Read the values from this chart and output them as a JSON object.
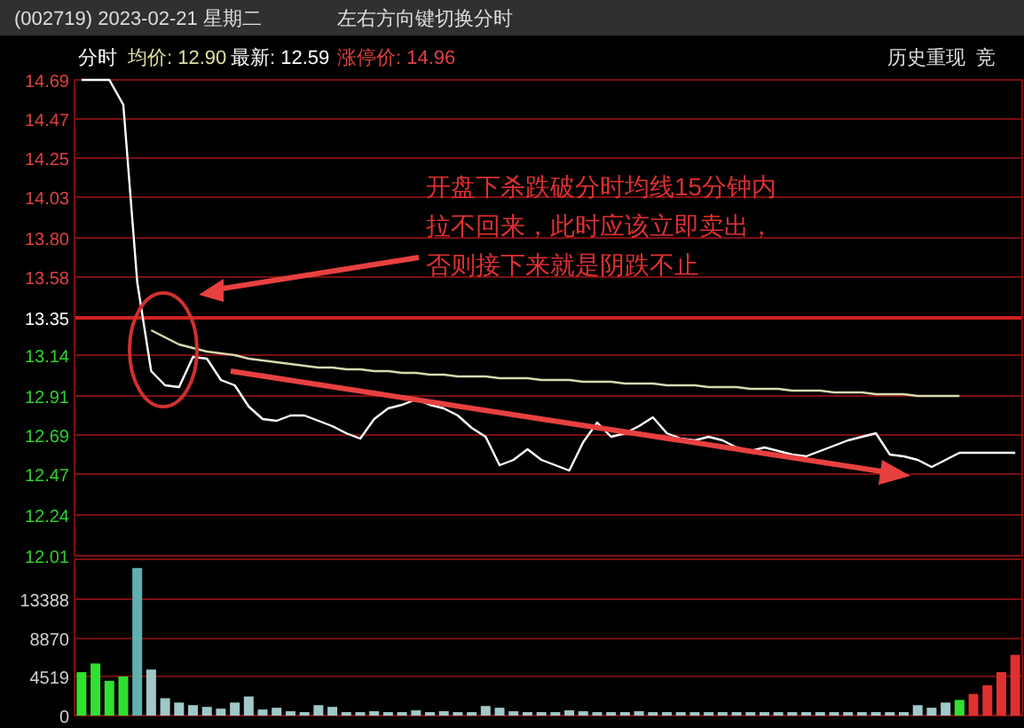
{
  "chart_data": [
    {
      "type": "line",
      "title": "(002719) 2023-02-21 星期二",
      "categories": [
        null,
        null,
        null,
        null,
        null,
        null,
        null,
        null,
        null,
        null,
        null,
        null,
        null,
        null,
        null,
        null,
        null,
        null,
        null,
        null,
        null,
        null,
        null,
        null,
        null,
        null,
        null,
        null,
        null,
        null,
        null,
        null,
        null,
        null,
        null,
        null,
        null,
        null,
        null,
        null,
        null,
        null,
        null,
        null,
        null,
        null,
        null,
        null,
        null,
        null,
        null,
        null,
        null,
        null,
        null,
        null,
        null,
        null,
        null,
        null,
        null,
        null,
        null,
        null,
        null,
        null,
        null,
        null
      ],
      "series": [
        {
          "color": "#ffffff",
          "values": [
            14.69,
            14.69,
            14.69,
            14.55,
            13.55,
            13.05,
            12.97,
            12.96,
            13.13,
            13.12,
            13.0,
            12.97,
            12.85,
            12.78,
            12.77,
            12.8,
            12.8,
            12.77,
            12.74,
            12.7,
            12.67,
            12.78,
            12.84,
            12.86,
            12.89,
            12.86,
            12.84,
            12.8,
            12.73,
            12.68,
            12.52,
            12.55,
            12.61,
            12.55,
            12.52,
            12.49,
            12.65,
            12.76,
            12.68,
            12.7,
            12.74,
            12.79,
            12.7,
            12.67,
            12.66,
            12.68,
            12.66,
            12.62,
            12.6,
            12.62,
            12.6,
            12.58,
            12.57,
            12.6,
            12.63,
            12.66,
            12.68,
            12.7,
            12.58,
            12.57,
            12.55,
            12.51,
            12.55,
            12.59,
            12.59,
            12.59,
            12.59,
            12.59
          ]
        },
        {
          "color": "#d8d8b0",
          "values": [
            null,
            null,
            null,
            null,
            null,
            13.28,
            13.24,
            13.2,
            13.18,
            13.16,
            13.15,
            13.14,
            13.12,
            13.11,
            13.1,
            13.09,
            13.08,
            13.07,
            13.07,
            13.06,
            13.06,
            13.05,
            13.05,
            13.04,
            13.04,
            13.03,
            13.03,
            13.02,
            13.02,
            13.02,
            13.01,
            13.01,
            13.01,
            13.0,
            13.0,
            13.0,
            12.99,
            12.99,
            12.99,
            12.98,
            12.98,
            12.98,
            12.97,
            12.97,
            12.97,
            12.96,
            12.96,
            12.96,
            12.95,
            12.95,
            12.95,
            12.94,
            12.94,
            12.94,
            12.93,
            12.93,
            12.93,
            12.92,
            12.92,
            12.92,
            12.91,
            12.91,
            12.91,
            12.91,
            null,
            null,
            null,
            null
          ]
        }
      ],
      "ylim": [
        12.01,
        14.69
      ],
      "yticks": [
        14.69,
        14.47,
        14.25,
        14.03,
        {
          "value": 13.8,
          "label": "13.80"
        },
        13.58,
        13.35,
        13.14,
        12.91,
        12.69,
        12.47,
        12.24,
        12.01
      ],
      "ref_lines": [
        {
          "axis": "y",
          "value": 13.35,
          "color": "#d02020"
        }
      ],
      "grid": "y",
      "annotations": [
        "左右方向键切换分时",
        "分时",
        "均价: 12.90",
        "最新: 12.59",
        "涨停价: 14.96",
        "历史重现",
        "竞",
        "开盘下杀跌破分时均线15分钟内",
        "拉不回来，此时应该立即卖出，",
        "否则接下来就是阴跌不止"
      ]
    },
    {
      "type": "bar",
      "categories": [
        null,
        null,
        null,
        null,
        null,
        null,
        null,
        null,
        null,
        null,
        null,
        null,
        null,
        null,
        null,
        null,
        null,
        null,
        null,
        null,
        null,
        null,
        null,
        null,
        null,
        null,
        null,
        null,
        null,
        null,
        null,
        null,
        null,
        null,
        null,
        null,
        null,
        null,
        null,
        null,
        null,
        null,
        null,
        null,
        null,
        null,
        null,
        null,
        null,
        null,
        null,
        null,
        null,
        null,
        null,
        null,
        null,
        null,
        null,
        null,
        null,
        null,
        null,
        null,
        null,
        null,
        null,
        null
      ],
      "values": [
        5000,
        6000,
        4000,
        4500,
        17000,
        5300,
        2000,
        1500,
        1200,
        1000,
        800,
        1500,
        2200,
        700,
        900,
        500,
        400,
        1200,
        1000,
        400,
        400,
        500,
        400,
        400,
        600,
        400,
        500,
        400,
        400,
        1100,
        900,
        500,
        400,
        400,
        400,
        600,
        500,
        400,
        400,
        400,
        500,
        400,
        400,
        400,
        400,
        400,
        400,
        400,
        400,
        400,
        400,
        400,
        400,
        400,
        400,
        400,
        400,
        400,
        400,
        400,
        1200,
        900,
        1500,
        1800,
        2500,
        3500,
        5000,
        7000
      ],
      "colors": [
        "#30e030",
        "#30e030",
        "#30e030",
        "#30e030",
        "#60b0b0",
        "#a0c8c8",
        "#a0c8c8",
        "#a0c8c8",
        "#a0c8c8",
        "#a0c8c8",
        "#a0c8c8",
        "#a0c8c8",
        "#a0c8c8",
        "#a0c8c8",
        "#a0c8c8",
        "#a0c8c8",
        "#a0c8c8",
        "#a0c8c8",
        "#a0c8c8",
        "#a0c8c8",
        "#a0c8c8",
        "#a0c8c8",
        "#a0c8c8",
        "#a0c8c8",
        "#a0c8c8",
        "#a0c8c8",
        "#a0c8c8",
        "#a0c8c8",
        "#a0c8c8",
        "#a0c8c8",
        "#a0c8c8",
        "#a0c8c8",
        "#a0c8c8",
        "#a0c8c8",
        "#a0c8c8",
        "#a0c8c8",
        "#a0c8c8",
        "#a0c8c8",
        "#a0c8c8",
        "#a0c8c8",
        "#a0c8c8",
        "#a0c8c8",
        "#a0c8c8",
        "#a0c8c8",
        "#a0c8c8",
        "#a0c8c8",
        "#a0c8c8",
        "#a0c8c8",
        "#a0c8c8",
        "#a0c8c8",
        "#a0c8c8",
        "#a0c8c8",
        "#a0c8c8",
        "#a0c8c8",
        "#a0c8c8",
        "#a0c8c8",
        "#a0c8c8",
        "#a0c8c8",
        "#a0c8c8",
        "#a0c8c8",
        "#a0c8c8",
        "#a0c8c8",
        "#a0c8c8",
        "#30e030",
        "#e03030",
        "#e03030",
        "#e03030",
        "#e03030"
      ],
      "ylim": [
        0,
        18000
      ],
      "yticks": [
        0,
        4519,
        8870,
        13388
      ],
      "grid": "y"
    }
  ]
}
